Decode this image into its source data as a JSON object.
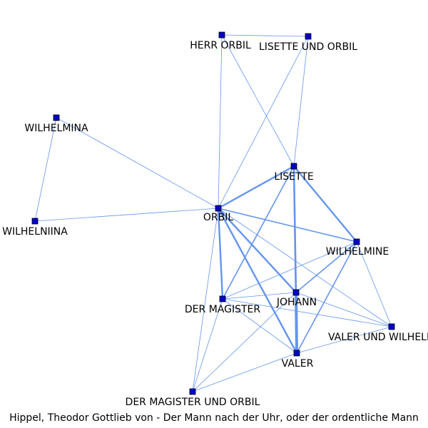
{
  "caption": "Hippel, Theodor Gottlieb von - Der Mann nach der Uhr, oder der ordentliche Mann",
  "colors": {
    "edge": "#6495ed",
    "node_fill": "#0000cd",
    "node_stroke": "#000000"
  },
  "nodes": [
    {
      "id": "herr-orbil",
      "label": "HERR ORBIL"
    },
    {
      "id": "lisette-und-orbil",
      "label": "LISETTE UND ORBIL"
    },
    {
      "id": "wilhelmina",
      "label": "WILHELMINA"
    },
    {
      "id": "wilhelniina",
      "label": "WILHELNIINA"
    },
    {
      "id": "lisette",
      "label": "LISETTE"
    },
    {
      "id": "orbil",
      "label": "ORBIL"
    },
    {
      "id": "wilhelmine",
      "label": "WILHELMINE"
    },
    {
      "id": "der-magister",
      "label": "DER MAGISTER"
    },
    {
      "id": "johann",
      "label": "JOHANN"
    },
    {
      "id": "valer-und-wilhelmine",
      "label": "VALER UND WILHELMINE"
    },
    {
      "id": "valer",
      "label": "VALER"
    },
    {
      "id": "der-magister-und-orbil",
      "label": "DER MAGISTER UND ORBIL"
    }
  ],
  "edges": [
    {
      "source": "herr-orbil",
      "target": "lisette-und-orbil",
      "weight": 1
    },
    {
      "source": "herr-orbil",
      "target": "orbil",
      "weight": 1
    },
    {
      "source": "herr-orbil",
      "target": "lisette",
      "weight": 1
    },
    {
      "source": "lisette-und-orbil",
      "target": "orbil",
      "weight": 1
    },
    {
      "source": "lisette-und-orbil",
      "target": "lisette",
      "weight": 1
    },
    {
      "source": "wilhelmina",
      "target": "wilhelniina",
      "weight": 1
    },
    {
      "source": "wilhelmina",
      "target": "orbil",
      "weight": 1
    },
    {
      "source": "wilhelniina",
      "target": "orbil",
      "weight": 1
    },
    {
      "source": "orbil",
      "target": "lisette",
      "weight": 3
    },
    {
      "source": "orbil",
      "target": "wilhelmine",
      "weight": 2
    },
    {
      "source": "orbil",
      "target": "johann",
      "weight": 3
    },
    {
      "source": "orbil",
      "target": "valer",
      "weight": 3
    },
    {
      "source": "orbil",
      "target": "der-magister",
      "weight": 3
    },
    {
      "source": "orbil",
      "target": "der-magister-und-orbil",
      "weight": 1
    },
    {
      "source": "orbil",
      "target": "valer-und-wilhelmine",
      "weight": 1
    },
    {
      "source": "lisette",
      "target": "wilhelmine",
      "weight": 3
    },
    {
      "source": "lisette",
      "target": "johann",
      "weight": 3
    },
    {
      "source": "lisette",
      "target": "valer",
      "weight": 3
    },
    {
      "source": "lisette",
      "target": "der-magister",
      "weight": 2
    },
    {
      "source": "wilhelmine",
      "target": "johann",
      "weight": 2
    },
    {
      "source": "wilhelmine",
      "target": "valer",
      "weight": 2
    },
    {
      "source": "wilhelmine",
      "target": "der-magister",
      "weight": 1
    },
    {
      "source": "wilhelmine",
      "target": "valer-und-wilhelmine",
      "weight": 1
    },
    {
      "source": "johann",
      "target": "valer",
      "weight": 5
    },
    {
      "source": "johann",
      "target": "der-magister",
      "weight": 1
    },
    {
      "source": "johann",
      "target": "valer-und-wilhelmine",
      "weight": 1
    },
    {
      "source": "johann",
      "target": "der-magister-und-orbil",
      "weight": 1
    },
    {
      "source": "der-magister",
      "target": "valer",
      "weight": 1
    },
    {
      "source": "der-magister",
      "target": "der-magister-und-orbil",
      "weight": 1
    },
    {
      "source": "der-magister",
      "target": "valer-und-wilhelmine",
      "weight": 1
    },
    {
      "source": "valer",
      "target": "valer-und-wilhelmine",
      "weight": 1
    },
    {
      "source": "valer",
      "target": "der-magister-und-orbil",
      "weight": 1
    }
  ]
}
